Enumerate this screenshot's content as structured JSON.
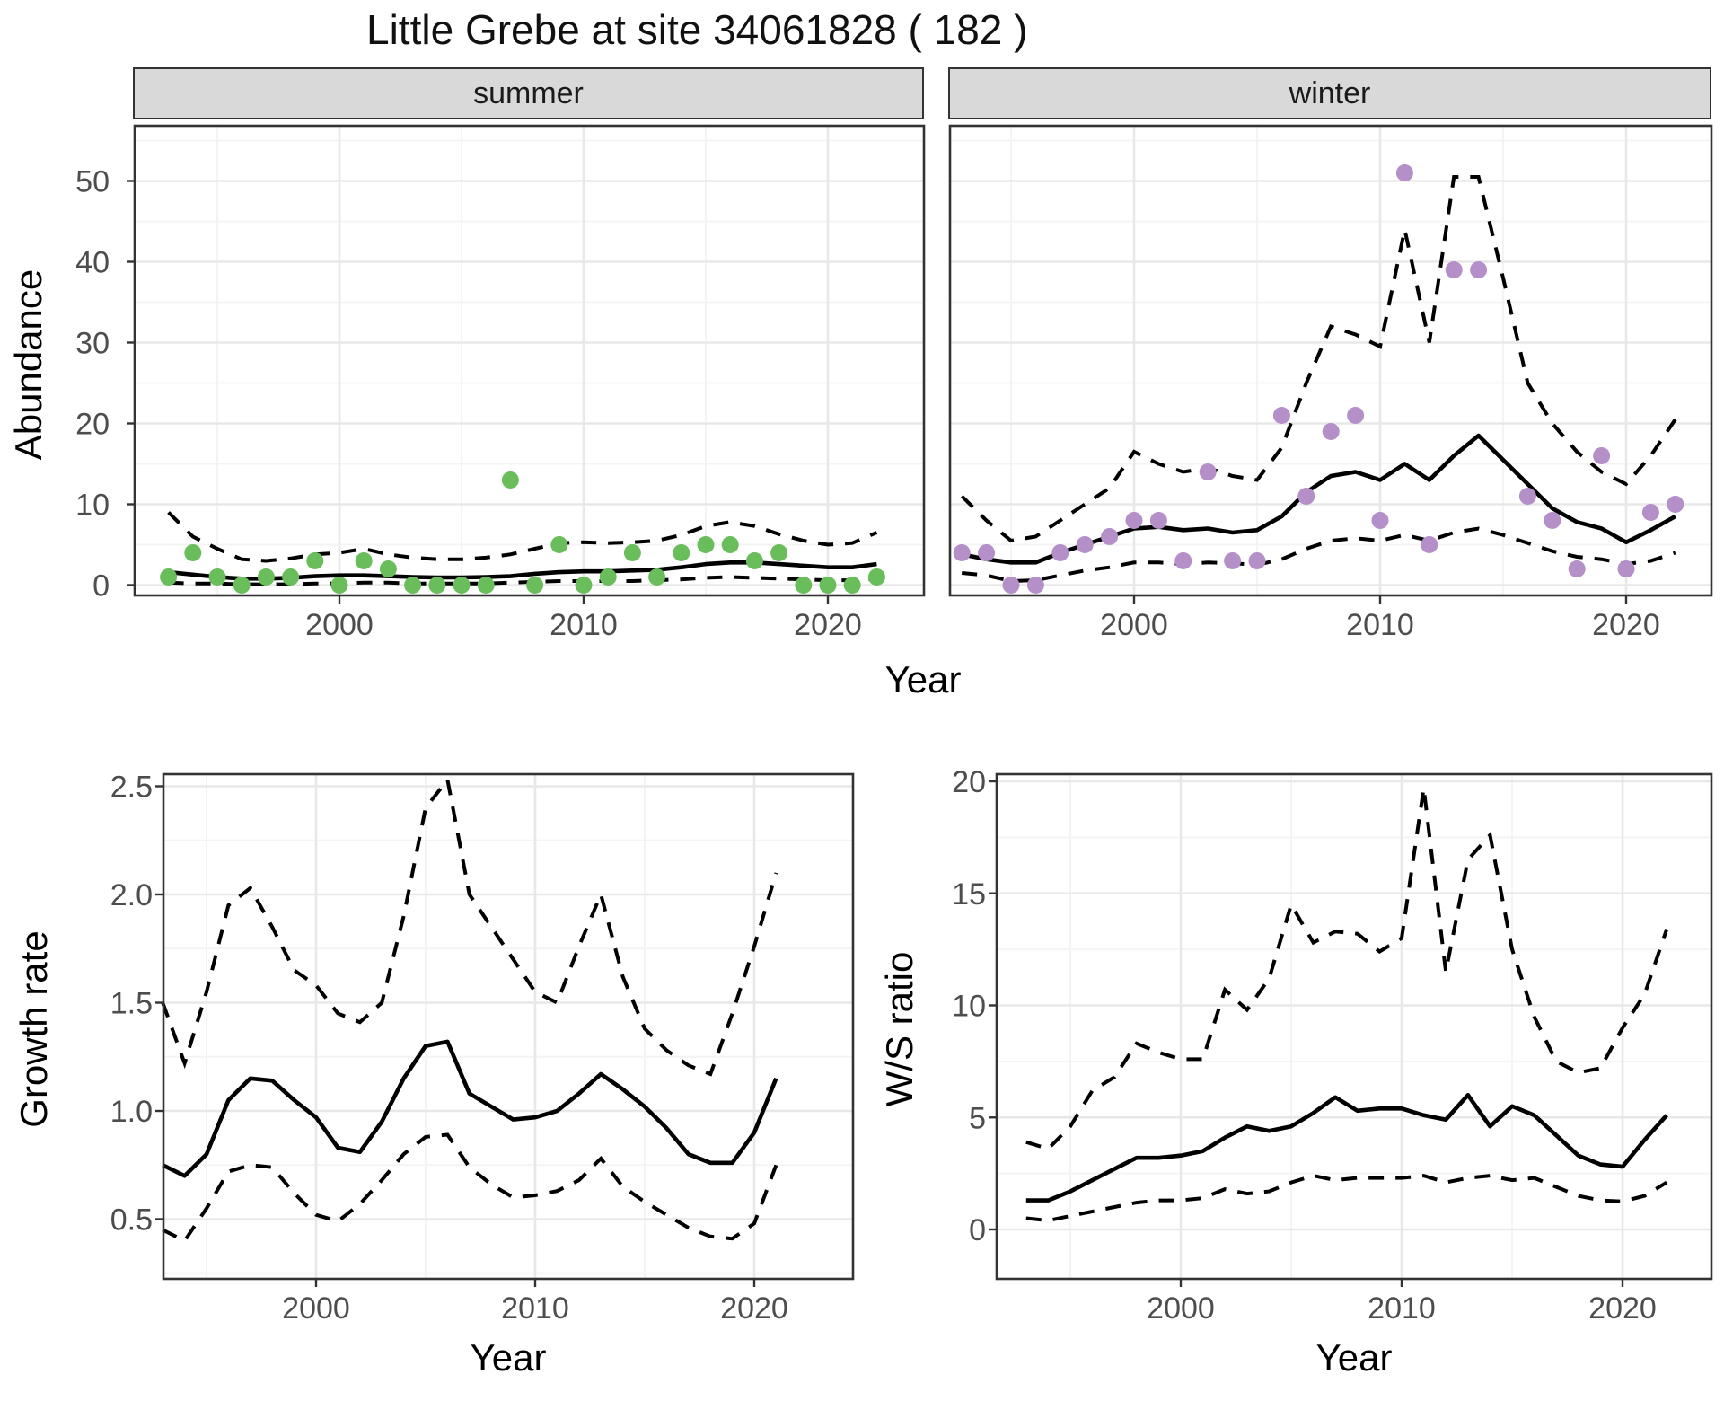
{
  "title": "Little Grebe at site 34061828 ( 182 )",
  "axes": {
    "abundance_label": "Abundance",
    "year_label": "Year",
    "growth_label": "Growth rate",
    "ws_label": "W/S ratio"
  },
  "colors": {
    "summer_points": "#6abd5b",
    "winter_points": "#b48fc8",
    "line": "#000000",
    "grid_major": "#e8e8e8",
    "grid_minor": "#f4f4f4",
    "panel_border": "#333333",
    "strip_bg": "#d9d9d9",
    "tick_text": "#4d4d4d",
    "tick_mark": "#333333"
  },
  "chart_data": [
    {
      "id": "abundance-summer",
      "type": "scatter",
      "facet_label": "summer",
      "ylabel": "Abundance",
      "xlabel": "Year",
      "x_ticks": [
        2000,
        2010,
        2020
      ],
      "x_tick_labels": [
        "2000",
        "2010",
        "2020"
      ],
      "y_ticks": [
        0,
        10,
        20,
        30,
        40,
        50
      ],
      "y_tick_labels": [
        "0",
        "10",
        "20",
        "30",
        "40",
        "50"
      ],
      "ylim": [
        -2,
        57
      ],
      "grid": true,
      "legend": "none",
      "years": [
        1993,
        1994,
        1995,
        1996,
        1997,
        1998,
        1999,
        2000,
        2001,
        2002,
        2003,
        2004,
        2005,
        2006,
        2007,
        2008,
        2009,
        2010,
        2011,
        2012,
        2013,
        2014,
        2015,
        2016,
        2017,
        2018,
        2019,
        2020,
        2021,
        2022
      ],
      "points": [
        1,
        4,
        1,
        0,
        1,
        1,
        3,
        0,
        3,
        2,
        0,
        0,
        0,
        0,
        13,
        0,
        5,
        0,
        1,
        4,
        1,
        4,
        5,
        5,
        3,
        4,
        0,
        0,
        0,
        1
      ],
      "fit": [
        1.6,
        1.3,
        1.0,
        0.8,
        0.8,
        0.9,
        1.1,
        1.2,
        1.2,
        1.1,
        1.0,
        0.95,
        0.95,
        1.0,
        1.1,
        1.4,
        1.6,
        1.7,
        1.7,
        1.8,
        1.9,
        2.2,
        2.6,
        2.8,
        2.8,
        2.6,
        2.4,
        2.2,
        2.2,
        2.6
      ],
      "ci_upper": [
        9,
        6,
        4.5,
        3.2,
        3.0,
        3.3,
        3.8,
        4.0,
        4.5,
        3.8,
        3.4,
        3.2,
        3.2,
        3.4,
        3.8,
        4.5,
        5.2,
        5.3,
        5.2,
        5.3,
        5.5,
        6.2,
        7.3,
        7.8,
        7.3,
        6.3,
        5.5,
        5.0,
        5.2,
        6.5
      ],
      "ci_lower": [
        0.3,
        0.2,
        0.2,
        0.1,
        0.1,
        0.1,
        0.2,
        0.2,
        0.3,
        0.3,
        0.2,
        0.2,
        0.2,
        0.2,
        0.3,
        0.4,
        0.5,
        0.5,
        0.5,
        0.5,
        0.6,
        0.7,
        0.9,
        1.0,
        0.9,
        0.8,
        0.7,
        0.6,
        0.6,
        0.8
      ]
    },
    {
      "id": "abundance-winter",
      "type": "scatter",
      "facet_label": "winter",
      "ylabel": "Abundance",
      "xlabel": "Year",
      "x_ticks": [
        2000,
        2010,
        2020
      ],
      "x_tick_labels": [
        "2000",
        "2010",
        "2020"
      ],
      "y_ticks": [
        0,
        10,
        20,
        30,
        40,
        50
      ],
      "y_tick_labels": [
        "0",
        "10",
        "20",
        "30",
        "40",
        "50"
      ],
      "ylim": [
        -2,
        57
      ],
      "grid": true,
      "legend": "none",
      "years": [
        1993,
        1994,
        1995,
        1996,
        1997,
        1998,
        1999,
        2000,
        2001,
        2002,
        2003,
        2004,
        2005,
        2006,
        2007,
        2008,
        2009,
        2010,
        2011,
        2012,
        2013,
        2014,
        2015,
        2016,
        2017,
        2018,
        2019,
        2020,
        2021,
        2022
      ],
      "points": [
        4,
        4,
        0,
        0,
        4,
        5,
        6,
        8,
        8,
        3,
        14,
        3,
        3,
        21,
        11,
        19,
        21,
        8,
        51,
        5,
        39,
        39,
        null,
        11,
        8,
        2,
        16,
        2,
        9,
        10
      ],
      "fit": [
        3.8,
        3.2,
        2.8,
        2.8,
        4.0,
        5.0,
        6.0,
        7.0,
        7.2,
        6.8,
        7.0,
        6.5,
        6.8,
        8.5,
        11.5,
        13.5,
        14.0,
        13.0,
        15.0,
        13.0,
        16.0,
        18.5,
        15.5,
        12.5,
        9.5,
        7.8,
        7.0,
        5.3,
        6.8,
        8.5
      ],
      "ci_upper": [
        11,
        8,
        5.5,
        6,
        8,
        10,
        12,
        16.5,
        15,
        14,
        14.5,
        13.5,
        13,
        17,
        25,
        32,
        31,
        29.5,
        44,
        30,
        50.5,
        50.5,
        38,
        25,
        20,
        16.5,
        14,
        12.5,
        16,
        20.5
      ],
      "ci_lower": [
        1.5,
        1.2,
        0.5,
        0.6,
        1.2,
        1.8,
        2.2,
        2.8,
        2.8,
        2.6,
        2.8,
        2.7,
        2.5,
        3.2,
        4.5,
        5.5,
        5.8,
        5.5,
        6.2,
        5.5,
        6.5,
        7.0,
        6.2,
        5.2,
        4.2,
        3.5,
        3.2,
        2.6,
        3.0,
        4.0
      ]
    },
    {
      "id": "growth-rate",
      "type": "line",
      "facet_label": "",
      "ylabel": "Growth rate",
      "xlabel": "Year",
      "x_ticks": [
        2000,
        2010,
        2020
      ],
      "x_tick_labels": [
        "2000",
        "2010",
        "2020"
      ],
      "y_ticks": [
        0.5,
        1.0,
        1.5,
        2.0,
        2.5
      ],
      "y_tick_labels": [
        "0.5",
        "1.0",
        "1.5",
        "2.0",
        "2.5"
      ],
      "ylim": [
        0.32,
        2.6
      ],
      "grid": true,
      "legend": "none",
      "years": [
        1993,
        1994,
        1995,
        1996,
        1997,
        1998,
        1999,
        2000,
        2001,
        2002,
        2003,
        2004,
        2005,
        2006,
        2007,
        2008,
        2009,
        2010,
        2011,
        2012,
        2013,
        2014,
        2015,
        2016,
        2017,
        2018,
        2019,
        2020,
        2021
      ],
      "fit": [
        0.75,
        0.7,
        0.8,
        1.05,
        1.15,
        1.14,
        1.05,
        0.97,
        0.83,
        0.81,
        0.95,
        1.15,
        1.3,
        1.32,
        1.08,
        1.02,
        0.96,
        0.97,
        1.0,
        1.08,
        1.17,
        1.1,
        1.02,
        0.92,
        0.8,
        0.76,
        0.76,
        0.9,
        1.15
      ],
      "ci_upper": [
        1.5,
        1.22,
        1.55,
        1.95,
        2.03,
        1.85,
        1.65,
        1.58,
        1.45,
        1.41,
        1.5,
        1.9,
        2.4,
        2.53,
        2.0,
        1.85,
        1.7,
        1.55,
        1.5,
        1.76,
        2.0,
        1.62,
        1.38,
        1.28,
        1.21,
        1.17,
        1.45,
        1.76,
        2.1
      ],
      "ci_lower": [
        0.45,
        0.4,
        0.55,
        0.72,
        0.75,
        0.74,
        0.62,
        0.52,
        0.49,
        0.57,
        0.68,
        0.8,
        0.88,
        0.89,
        0.74,
        0.66,
        0.6,
        0.61,
        0.63,
        0.68,
        0.78,
        0.65,
        0.58,
        0.52,
        0.46,
        0.42,
        0.41,
        0.48,
        0.75
      ]
    },
    {
      "id": "ws-ratio",
      "type": "line",
      "facet_label": "",
      "ylabel": "W/S ratio",
      "xlabel": "Year",
      "x_ticks": [
        2000,
        2010,
        2020
      ],
      "x_tick_labels": [
        "2000",
        "2010",
        "2020"
      ],
      "y_ticks": [
        0,
        5,
        10,
        15,
        20
      ],
      "y_tick_labels": [
        "0",
        "5",
        "10",
        "15",
        "20"
      ],
      "ylim": [
        -0.6,
        20.3
      ],
      "grid": true,
      "legend": "none",
      "years": [
        1993,
        1994,
        1995,
        1996,
        1997,
        1998,
        1999,
        2000,
        2001,
        2002,
        2003,
        2004,
        2005,
        2006,
        2007,
        2008,
        2009,
        2010,
        2011,
        2012,
        2013,
        2014,
        2015,
        2016,
        2017,
        2018,
        2019,
        2020,
        2021,
        2022
      ],
      "fit": [
        1.3,
        1.3,
        1.7,
        2.2,
        2.7,
        3.2,
        3.2,
        3.3,
        3.5,
        4.1,
        4.6,
        4.4,
        4.6,
        5.2,
        5.9,
        5.3,
        5.4,
        5.4,
        5.1,
        4.9,
        6.0,
        4.6,
        5.5,
        5.1,
        4.2,
        3.3,
        2.9,
        2.8,
        4.0,
        5.1
      ],
      "ci_upper": [
        3.9,
        3.6,
        4.6,
        6.2,
        6.8,
        8.3,
        7.9,
        7.6,
        7.6,
        10.7,
        9.8,
        11.2,
        14.5,
        12.8,
        13.3,
        13.2,
        12.4,
        13.0,
        19.7,
        11.5,
        16.5,
        17.6,
        12.5,
        9.5,
        7.5,
        7.0,
        7.2,
        9.0,
        10.5,
        13.4
      ],
      "ci_lower": [
        0.5,
        0.4,
        0.6,
        0.8,
        1.0,
        1.2,
        1.3,
        1.3,
        1.4,
        1.8,
        1.6,
        1.7,
        2.1,
        2.4,
        2.2,
        2.3,
        2.3,
        2.3,
        2.4,
        2.1,
        2.3,
        2.4,
        2.2,
        2.3,
        1.9,
        1.5,
        1.3,
        1.25,
        1.5,
        2.1
      ]
    }
  ]
}
